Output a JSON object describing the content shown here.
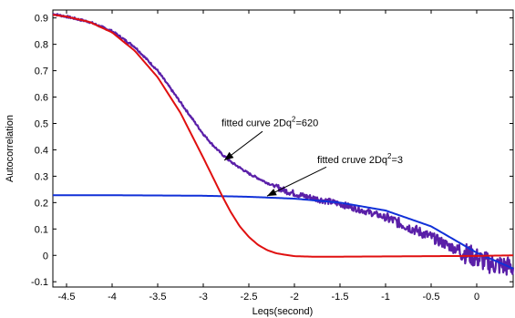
{
  "chart_data": {
    "type": "line",
    "title": "",
    "xlabel": "Leqs(second)",
    "ylabel": "Autocorrelation",
    "xlim": [
      -4.65,
      0.4
    ],
    "ylim": [
      -0.12,
      0.93
    ],
    "xticks": [
      -4.5,
      -4,
      -3.5,
      -3,
      -2.5,
      -2,
      -1.5,
      -1,
      -0.5,
      0
    ],
    "xtick_labels": [
      "-4.5",
      "-4",
      "-3.5",
      "-3",
      "-2.5",
      "-2",
      "-1.5",
      "-1",
      "-0.5",
      "0"
    ],
    "yticks": [
      -0.1,
      0,
      0.1,
      0.2,
      0.3,
      0.4,
      0.5,
      0.6,
      0.7,
      0.8,
      0.9
    ],
    "ytick_labels": [
      "-0.1",
      "0",
      "0.1",
      "0.2",
      "0.3",
      "0.4",
      "0.5",
      "0.6",
      "0.7",
      "0.8",
      "0.9"
    ],
    "grid": false,
    "legend": "none",
    "series": [
      {
        "color": "#5a1fa8",
        "style": "noisy-thick",
        "x": [
          -4.65,
          -4.5,
          -4.25,
          -4.0,
          -3.75,
          -3.5,
          -3.25,
          -3.0,
          -2.9,
          -2.8,
          -2.7,
          -2.5,
          -2.3,
          -2.1,
          -1.9,
          -1.7,
          -1.5,
          -1.3,
          -1.1,
          -0.9,
          -0.7,
          -0.5,
          -0.3,
          -0.1,
          0.0,
          0.1,
          0.2,
          0.4
        ],
        "y": [
          0.915,
          0.905,
          0.885,
          0.85,
          0.79,
          0.7,
          0.58,
          0.46,
          0.42,
          0.385,
          0.355,
          0.31,
          0.275,
          0.245,
          0.225,
          0.21,
          0.195,
          0.175,
          0.155,
          0.13,
          0.1,
          0.07,
          0.035,
          0.005,
          -0.01,
          -0.025,
          -0.035,
          -0.045
        ]
      },
      {
        "color": "#e01010",
        "style": "line",
        "x": [
          -4.65,
          -4.5,
          -4.25,
          -4.0,
          -3.75,
          -3.5,
          -3.25,
          -3.0,
          -2.9,
          -2.8,
          -2.7,
          -2.6,
          -2.5,
          -2.4,
          -2.3,
          -2.2,
          -2.1,
          -2.0,
          -1.8,
          -1.5,
          -1.0,
          -0.5,
          0.0,
          0.4
        ],
        "y": [
          0.912,
          0.905,
          0.885,
          0.845,
          0.775,
          0.675,
          0.54,
          0.37,
          0.3,
          0.23,
          0.165,
          0.11,
          0.07,
          0.04,
          0.02,
          0.008,
          0.002,
          -0.003,
          -0.005,
          -0.005,
          -0.004,
          -0.003,
          -0.002,
          0.0
        ]
      },
      {
        "color": "#1030d8",
        "style": "line",
        "x": [
          -4.65,
          -4.0,
          -3.5,
          -3.0,
          -2.5,
          -2.0,
          -1.5,
          -1.0,
          -0.5,
          0.0,
          0.4
        ],
        "y": [
          0.228,
          0.228,
          0.227,
          0.226,
          0.222,
          0.215,
          0.2,
          0.17,
          0.11,
          0.01,
          -0.05
        ]
      }
    ],
    "annotations": [
      {
        "text_main": "fitted curve  2Dq",
        "superscript": "2",
        "text_tail": "=620",
        "text_x": -2.8,
        "text_y": 0.49,
        "arrow_from": [
          -2.35,
          0.47
        ],
        "arrow_to": [
          -2.77,
          0.36
        ]
      },
      {
        "text_main": "fitted cruve  2Dq",
        "superscript": "2",
        "text_tail": "=3",
        "text_x": -1.75,
        "text_y": 0.35,
        "arrow_from": [
          -1.65,
          0.335
        ],
        "arrow_to": [
          -2.3,
          0.225
        ]
      }
    ]
  }
}
